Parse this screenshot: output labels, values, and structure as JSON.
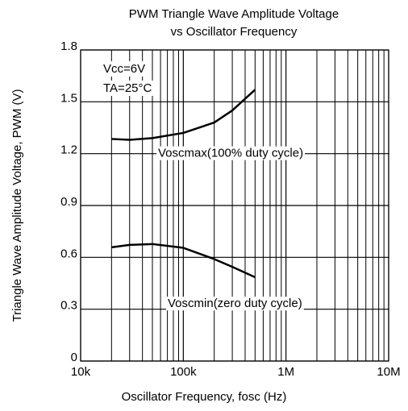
{
  "chart_data": {
    "type": "line",
    "title": [
      "PWM Triangle Wave Amplitude Voltage",
      "vs Oscillator Frequency"
    ],
    "x_label": "Oscillator Frequency, fosc (Hz)",
    "y_label": "Triangle Wave Amplitude Voltage, PWM (V)",
    "x": [
      20000,
      30000,
      50000,
      100000,
      200000,
      300000,
      500000
    ],
    "series": [
      {
        "name": "Voscmax(100% duty cycle)",
        "color": "#000000",
        "values": [
          1.285,
          1.28,
          1.29,
          1.32,
          1.38,
          1.45,
          1.57
        ]
      },
      {
        "name": "Voscmin(zero duty cycle)",
        "color": "#000000",
        "values": [
          0.658,
          0.672,
          0.677,
          0.655,
          0.59,
          0.545,
          0.485
        ]
      }
    ],
    "annotations": [
      "Vcc=6V",
      "TA=25°C"
    ],
    "xlim": [
      10000,
      10000000
    ],
    "xscale": "log",
    "xticks": [
      {
        "value": 10000,
        "label": "10k"
      },
      {
        "value": 100000,
        "label": "100k"
      },
      {
        "value": 1000000,
        "label": "1M"
      },
      {
        "value": 10000000,
        "label": "10M"
      }
    ],
    "x_minor_ticks": [
      20000,
      30000,
      40000,
      50000,
      60000,
      70000,
      80000,
      90000,
      200000,
      300000,
      400000,
      500000,
      600000,
      700000,
      800000,
      900000,
      2000000,
      3000000,
      4000000,
      5000000,
      6000000,
      7000000,
      8000000,
      9000000
    ],
    "ylim": [
      0,
      1.8
    ],
    "yticks": [
      0,
      0.3,
      0.6,
      0.9,
      1.2,
      1.5,
      1.8
    ],
    "grid": true
  }
}
